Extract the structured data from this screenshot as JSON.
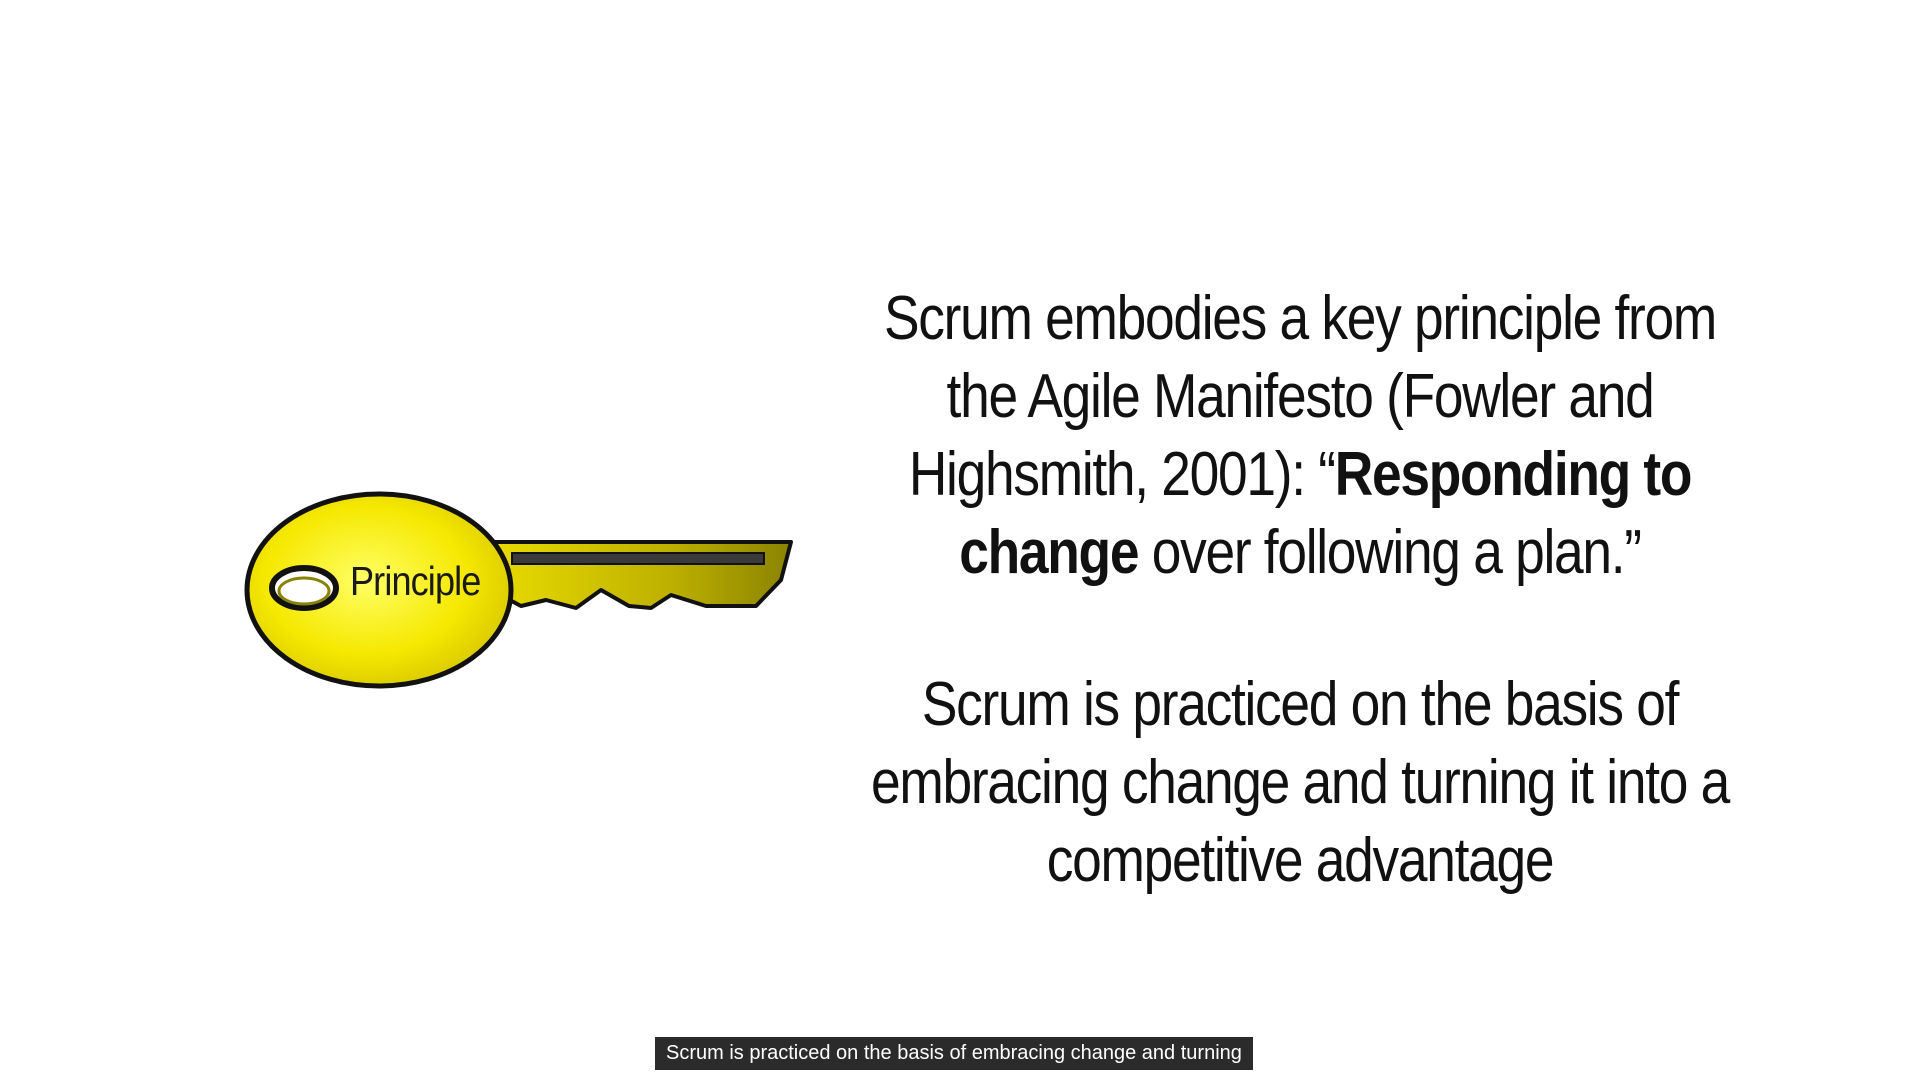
{
  "key": {
    "label": "Principle",
    "icon": "key-icon",
    "color": "#f2e000"
  },
  "paragraph1": {
    "line1": "Scrum embodies a key principle from",
    "line2": "the Agile Manifesto (Fowler and",
    "line3_plain": "Highsmith, 2001): “",
    "line3_bold": "Responding to",
    "line4_bold": "change",
    "line4_plain": " over following a plan.”"
  },
  "paragraph2": {
    "line1": "Scrum is practiced on the basis of",
    "line2": "embracing change and turning it into a",
    "line3": "competitive advantage"
  },
  "caption": {
    "text": "Scrum is practiced on the basis of embracing change and turning"
  }
}
